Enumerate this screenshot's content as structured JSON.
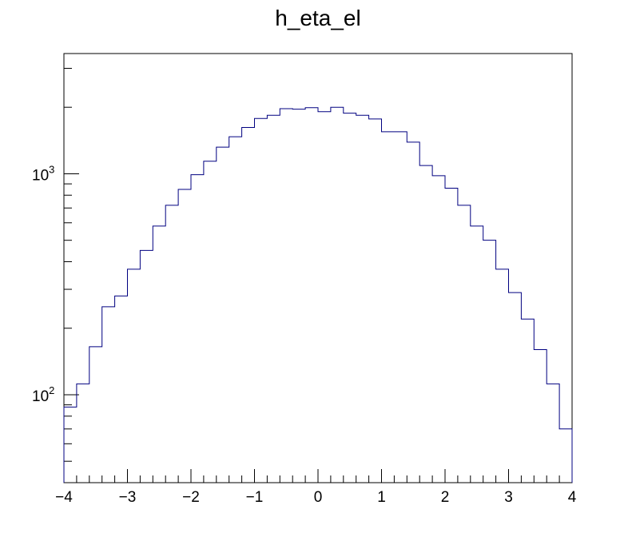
{
  "chart_data": {
    "type": "histogram",
    "title": "h_eta_el",
    "xlabel": "",
    "ylabel": "",
    "x_range": [
      -4,
      4
    ],
    "y_range": [
      40,
      3500
    ],
    "y_scale": "log",
    "grid": false,
    "legend": "none",
    "line_color": "#000080",
    "x_ticks": [
      "−4",
      "−3",
      "−2",
      "−1",
      "0",
      "1",
      "2",
      "3",
      "4"
    ],
    "x_tick_values": [
      -4,
      -3,
      -2,
      -1,
      0,
      1,
      2,
      3,
      4
    ],
    "y_tick_base": "10",
    "y_ticks": [
      {
        "value": 100,
        "exponent": "2"
      },
      {
        "value": 1000,
        "exponent": "3"
      }
    ],
    "bin_edges": [
      -4.0,
      -3.8,
      -3.6,
      -3.4,
      -3.2,
      -3.0,
      -2.8,
      -2.6,
      -2.4,
      -2.2,
      -2.0,
      -1.8,
      -1.6,
      -1.4,
      -1.2,
      -1.0,
      -0.8,
      -0.6,
      -0.4,
      -0.2,
      0.0,
      0.2,
      0.4,
      0.6,
      0.8,
      1.0,
      1.2,
      1.4,
      1.6,
      1.8,
      2.0,
      2.2,
      2.4,
      2.6,
      2.8,
      3.0,
      3.2,
      3.4,
      3.6,
      3.8,
      4.0
    ],
    "counts": [
      88,
      112,
      165,
      250,
      280,
      370,
      450,
      580,
      720,
      850,
      990,
      1140,
      1320,
      1470,
      1620,
      1780,
      1840,
      1970,
      1960,
      1990,
      1910,
      2000,
      1880,
      1840,
      1770,
      1550,
      1550,
      1390,
      1090,
      980,
      860,
      720,
      580,
      500,
      370,
      290,
      220,
      160,
      112,
      70
    ]
  }
}
